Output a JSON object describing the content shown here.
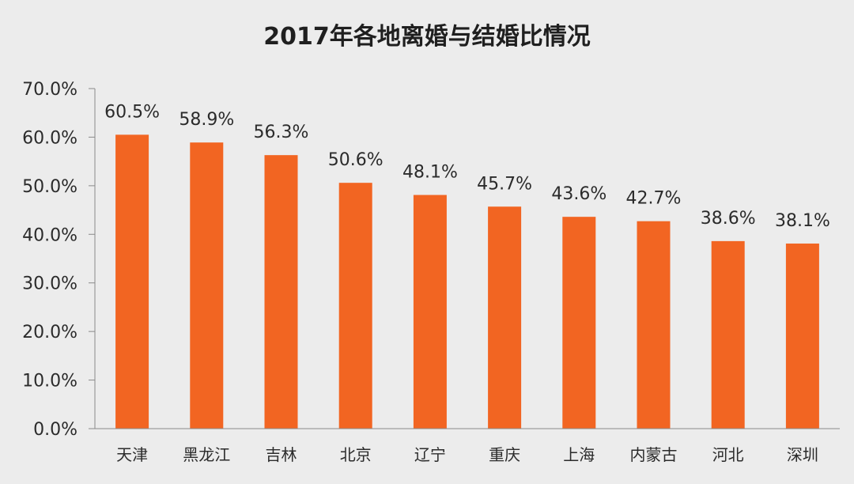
{
  "chart_data": {
    "type": "bar",
    "title": "2017年各地离婚与结婚比情况",
    "categories": [
      "天津",
      "黑龙江",
      "吉林",
      "北京",
      "辽宁",
      "重庆",
      "上海",
      "内蒙古",
      "河北",
      "深圳"
    ],
    "values": [
      60.5,
      58.9,
      56.3,
      50.6,
      48.1,
      45.7,
      43.6,
      42.7,
      38.6,
      38.1
    ],
    "value_labels": [
      "60.5%",
      "58.9%",
      "56.3%",
      "50.6%",
      "48.1%",
      "45.7%",
      "43.6%",
      "42.7%",
      "38.6%",
      "38.1%"
    ],
    "yticks": [
      "0.0%",
      "10.0%",
      "20.0%",
      "30.0%",
      "40.0%",
      "50.0%",
      "60.0%",
      "70.0%"
    ],
    "ylim": [
      0,
      70
    ],
    "grid": false,
    "legend": "none",
    "bar_color": "#f26522"
  }
}
